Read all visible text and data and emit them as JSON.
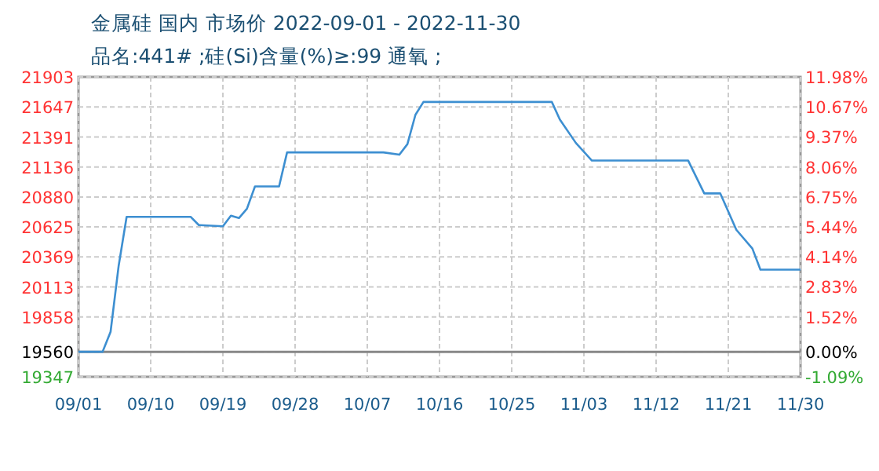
{
  "chart_data": {
    "type": "line",
    "title": "金属硅 国内 市场价 2022-09-01 - 2022-11-30",
    "subtitle": "品名:441# ;硅(Si)含量(%)≥:99 通氧 ;",
    "x": [
      "2022-09-01",
      "2022-09-04",
      "2022-09-05",
      "2022-09-06",
      "2022-09-07",
      "2022-09-15",
      "2022-09-16",
      "2022-09-19",
      "2022-09-20",
      "2022-09-21",
      "2022-09-22",
      "2022-09-23",
      "2022-09-26",
      "2022-09-27",
      "2022-10-09",
      "2022-10-11",
      "2022-10-12",
      "2022-10-13",
      "2022-10-14",
      "2022-10-30",
      "2022-10-31",
      "2022-11-02",
      "2022-11-04",
      "2022-11-16",
      "2022-11-18",
      "2022-11-20",
      "2022-11-22",
      "2022-11-24",
      "2022-11-25",
      "2022-11-30"
    ],
    "series": [
      {
        "color": "#3d8fd1",
        "values": [
          19560,
          19560,
          19730,
          20290,
          20710,
          20710,
          20640,
          20630,
          20720,
          20700,
          20780,
          20970,
          20970,
          21260,
          21260,
          21240,
          21330,
          21580,
          21690,
          21690,
          21540,
          21340,
          21190,
          21190,
          20910,
          20910,
          20600,
          20440,
          20260,
          20260
        ]
      }
    ],
    "xlim": [
      "2022-09-01",
      "2022-11-30"
    ],
    "xticks": [
      {
        "value": "2022-09-01",
        "label": "09/01"
      },
      {
        "value": "2022-09-10",
        "label": "09/10"
      },
      {
        "value": "2022-09-19",
        "label": "09/19"
      },
      {
        "value": "2022-09-28",
        "label": "09/28"
      },
      {
        "value": "2022-10-07",
        "label": "10/07"
      },
      {
        "value": "2022-10-16",
        "label": "10/16"
      },
      {
        "value": "2022-10-25",
        "label": "10/25"
      },
      {
        "value": "2022-11-03",
        "label": "11/03"
      },
      {
        "value": "2022-11-12",
        "label": "11/12"
      },
      {
        "value": "2022-11-21",
        "label": "11/21"
      },
      {
        "value": "2022-11-30",
        "label": "11/30"
      }
    ],
    "ylim": [
      19347,
      21903
    ],
    "yticks": [
      19347,
      19560,
      19858,
      20113,
      20369,
      20625,
      20880,
      21136,
      21391,
      21647,
      21903
    ],
    "y2lim": [
      -1.09,
      11.98
    ],
    "y2ticks": [
      {
        "value": -1.09,
        "label": "-1.09%"
      },
      {
        "value": 0,
        "label": "0.00%"
      },
      {
        "value": 1.52,
        "label": "1.52%"
      },
      {
        "value": 2.83,
        "label": "2.83%"
      },
      {
        "value": 4.14,
        "label": "4.14%"
      },
      {
        "value": 5.44,
        "label": "5.44%"
      },
      {
        "value": 6.75,
        "label": "6.75%"
      },
      {
        "value": 8.06,
        "label": "8.06%"
      },
      {
        "value": 9.37,
        "label": "9.37%"
      },
      {
        "value": 10.67,
        "label": "10.67%"
      },
      {
        "value": 11.98,
        "label": "11.98%"
      }
    ],
    "ref_lines": [
      {
        "axis": "y",
        "value": 19560,
        "color": "#888888",
        "line_style": "solid"
      }
    ],
    "grid": true,
    "line_style": "solid"
  }
}
